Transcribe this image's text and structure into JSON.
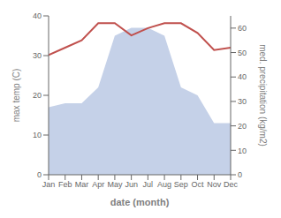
{
  "chart_data": {
    "type": "area",
    "xlabel": "date (month)",
    "ylabel": "max temp (C)",
    "y2label": "med. precipitation (kg/m2)",
    "x": [
      1,
      2,
      3,
      4,
      5,
      6,
      7,
      8,
      9,
      10,
      11,
      12
    ],
    "xlim": [
      1,
      12
    ],
    "xticks": [
      {
        "value": 1,
        "label": "Jan"
      },
      {
        "value": 2,
        "label": "Feb"
      },
      {
        "value": 3,
        "label": "Mar"
      },
      {
        "value": 4,
        "label": "Apr"
      },
      {
        "value": 5,
        "label": "May"
      },
      {
        "value": 6,
        "label": "Jun"
      },
      {
        "value": 7,
        "label": "Jul"
      },
      {
        "value": 8,
        "label": "Aug"
      },
      {
        "value": 9,
        "label": "Sep"
      },
      {
        "value": 10,
        "label": "Oct"
      },
      {
        "value": 11,
        "label": "Nov"
      },
      {
        "value": 12,
        "label": "Dec"
      }
    ],
    "ylim": [
      0,
      40
    ],
    "yticks": [
      0,
      10,
      20,
      30,
      40
    ],
    "y2lim": [
      0,
      65
    ],
    "y2ticks": [
      0,
      10,
      20,
      30,
      40,
      50,
      60
    ],
    "grid": false,
    "series": [
      {
        "type": "area",
        "color": "#c5d1e8",
        "values": [
          17,
          18,
          18,
          22,
          35,
          37,
          37,
          35,
          22,
          20,
          13,
          13
        ]
      },
      {
        "type": "line",
        "color": "#c0504d",
        "axis": "y2",
        "values": [
          49,
          52,
          55,
          62,
          62,
          57,
          60,
          62,
          62,
          58,
          51,
          52
        ]
      }
    ]
  }
}
